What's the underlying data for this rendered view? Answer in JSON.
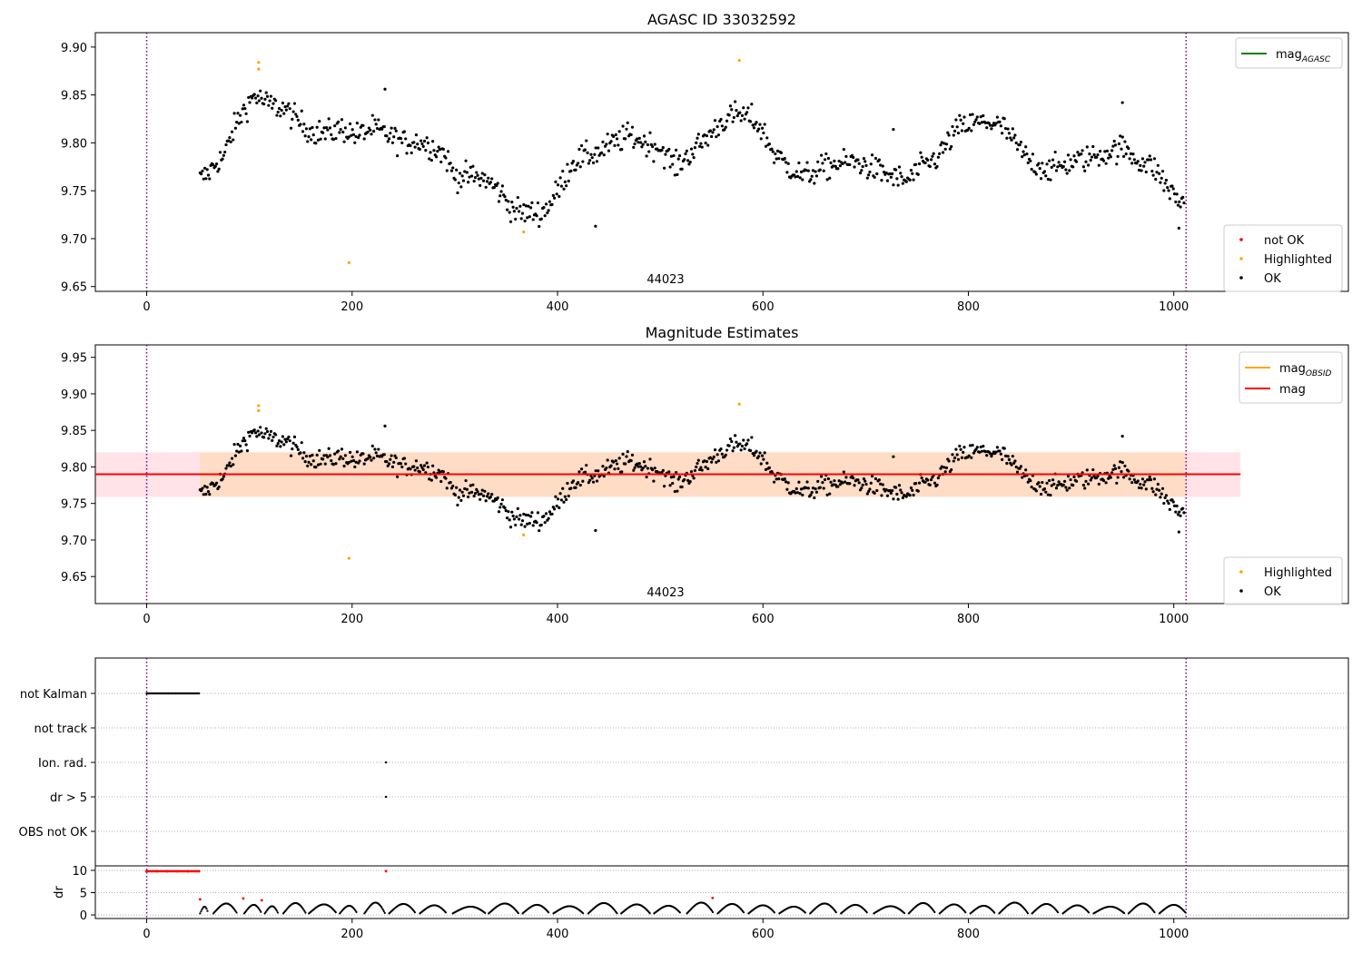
{
  "chart_data": [
    {
      "type": "scatter",
      "title": "AGASC ID 33032592",
      "xlim": [
        -50,
        1170
      ],
      "ylim": [
        9.645,
        9.915
      ],
      "xticks": [
        0,
        200,
        400,
        600,
        800,
        1000
      ],
      "yticks": [
        "9.65",
        "9.70",
        "9.75",
        "9.80",
        "9.85",
        "9.90"
      ],
      "obsid_label": "44023",
      "obsid_label_x": 505,
      "vlines": [
        0,
        1012
      ],
      "legend_lines": [
        {
          "label": "mag",
          "sub": "AGASC",
          "color": "#008000"
        }
      ],
      "legend_points": [
        {
          "label": "not OK",
          "color": "#ff0000"
        },
        {
          "label": "Highlighted",
          "color": "#ffa500"
        },
        {
          "label": "OK",
          "color": "#000000"
        }
      ],
      "highlighted": [
        [
          109,
          9.884
        ],
        [
          109,
          9.877
        ],
        [
          197,
          9.675
        ],
        [
          367,
          9.707
        ],
        [
          577,
          9.886
        ]
      ],
      "ok_trend": [
        [
          52,
          9.762
        ],
        [
          60,
          9.768
        ],
        [
          68,
          9.78
        ],
        [
          75,
          9.785
        ],
        [
          85,
          9.815
        ],
        [
          95,
          9.835
        ],
        [
          105,
          9.85
        ],
        [
          115,
          9.842
        ],
        [
          125,
          9.838
        ],
        [
          135,
          9.835
        ],
        [
          145,
          9.825
        ],
        [
          160,
          9.812
        ],
        [
          175,
          9.81
        ],
        [
          190,
          9.815
        ],
        [
          205,
          9.808
        ],
        [
          220,
          9.815
        ],
        [
          235,
          9.808
        ],
        [
          250,
          9.8
        ],
        [
          265,
          9.802
        ],
        [
          280,
          9.795
        ],
        [
          290,
          9.788
        ],
        [
          300,
          9.765
        ],
        [
          315,
          9.765
        ],
        [
          330,
          9.762
        ],
        [
          345,
          9.748
        ],
        [
          355,
          9.732
        ],
        [
          365,
          9.727
        ],
        [
          375,
          9.727
        ],
        [
          385,
          9.727
        ],
        [
          395,
          9.74
        ],
        [
          405,
          9.76
        ],
        [
          415,
          9.78
        ],
        [
          425,
          9.785
        ],
        [
          440,
          9.79
        ],
        [
          455,
          9.8
        ],
        [
          470,
          9.808
        ],
        [
          485,
          9.8
        ],
        [
          500,
          9.795
        ],
        [
          515,
          9.775
        ],
        [
          530,
          9.79
        ],
        [
          545,
          9.805
        ],
        [
          560,
          9.822
        ],
        [
          575,
          9.83
        ],
        [
          590,
          9.825
        ],
        [
          600,
          9.812
        ],
        [
          610,
          9.79
        ],
        [
          625,
          9.775
        ],
        [
          640,
          9.765
        ],
        [
          655,
          9.772
        ],
        [
          670,
          9.778
        ],
        [
          690,
          9.78
        ],
        [
          710,
          9.772
        ],
        [
          725,
          9.765
        ],
        [
          740,
          9.76
        ],
        [
          755,
          9.775
        ],
        [
          770,
          9.785
        ],
        [
          780,
          9.8
        ],
        [
          790,
          9.815
        ],
        [
          805,
          9.82
        ],
        [
          820,
          9.822
        ],
        [
          835,
          9.815
        ],
        [
          845,
          9.8
        ],
        [
          860,
          9.78
        ],
        [
          880,
          9.772
        ],
        [
          900,
          9.78
        ],
        [
          920,
          9.785
        ],
        [
          935,
          9.79
        ],
        [
          950,
          9.795
        ],
        [
          965,
          9.782
        ],
        [
          980,
          9.775
        ],
        [
          990,
          9.76
        ],
        [
          1000,
          9.745
        ],
        [
          1010,
          9.735
        ]
      ],
      "ok_noise": 0.012,
      "ok_step": 1.15,
      "ok_outliers": [
        [
          437,
          9.713
        ],
        [
          1005,
          9.711
        ],
        [
          232,
          9.856
        ],
        [
          950,
          9.842
        ],
        [
          727,
          9.814
        ]
      ]
    },
    {
      "type": "scatter",
      "title": "Magnitude Estimates",
      "xlim": [
        -50,
        1170
      ],
      "ylim": [
        9.613,
        9.967
      ],
      "xticks": [
        0,
        200,
        400,
        600,
        800,
        1000
      ],
      "yticks": [
        "9.65",
        "9.70",
        "9.75",
        "9.80",
        "9.85",
        "9.90",
        "9.95"
      ],
      "obsid_label": "44023",
      "obsid_label_x": 505,
      "vlines": [
        0,
        1012
      ],
      "mag_line": {
        "y": 9.79,
        "color": "#ff0000",
        "x0": -50,
        "x1": 1065
      },
      "mag_band": {
        "y0": 9.759,
        "y1": 9.82,
        "color": "#ffc0cb"
      },
      "obsid_band": {
        "y0": 9.759,
        "y1": 9.82,
        "x0": 52,
        "x1": 1012,
        "color": "#ffdab9"
      },
      "legend_lines": [
        {
          "label": "mag",
          "sub": "OBSID",
          "color": "#ffa500"
        },
        {
          "label": "mag",
          "sub": "",
          "color": "#ff0000"
        }
      ],
      "legend_points": [
        {
          "label": "Highlighted",
          "color": "#ffa500"
        },
        {
          "label": "OK",
          "color": "#000000"
        }
      ]
    },
    {
      "type": "scatter",
      "xlim": [
        -50,
        1170
      ],
      "xticks": [
        0,
        200,
        400,
        600,
        800,
        1000
      ],
      "vlines": [
        0,
        1012
      ],
      "flag_rows": [
        "not Kalman",
        "not track",
        "Ion. rad.",
        "dr > 5",
        "OBS not OK"
      ],
      "flag_points": [
        {
          "row": "not Kalman",
          "x_from": 0,
          "x_to": 51
        },
        {
          "row": "Ion. rad.",
          "x_from": 233,
          "x_to": 233
        },
        {
          "row": "dr > 5",
          "x_from": 233,
          "x_to": 233
        }
      ],
      "dr_ylabel": "dr",
      "dr_yticks": [
        "0",
        "5",
        "10"
      ],
      "dr_ylim": [
        -0.8,
        10.8
      ],
      "dr_red_points": [
        [
          0,
          9.8
        ],
        [
          10,
          9.8
        ],
        [
          20,
          9.8
        ],
        [
          30,
          9.8
        ],
        [
          40,
          9.8
        ],
        [
          51,
          9.8
        ],
        [
          233,
          9.8
        ],
        [
          52,
          3.5
        ],
        [
          94,
          3.7
        ],
        [
          112,
          3.3
        ],
        [
          551,
          3.8
        ]
      ],
      "dr_arcs": [
        [
          52,
          60
        ],
        [
          65,
          88
        ],
        [
          95,
          112
        ],
        [
          115,
          128
        ],
        [
          133,
          155
        ],
        [
          158,
          185
        ],
        [
          188,
          205
        ],
        [
          212,
          232
        ],
        [
          236,
          262
        ],
        [
          266,
          292
        ],
        [
          298,
          330
        ],
        [
          333,
          362
        ],
        [
          366,
          392
        ],
        [
          396,
          425
        ],
        [
          430,
          458
        ],
        [
          462,
          490
        ],
        [
          494,
          520
        ],
        [
          526,
          552
        ],
        [
          556,
          582
        ],
        [
          586,
          612
        ],
        [
          616,
          642
        ],
        [
          646,
          672
        ],
        [
          676,
          702
        ],
        [
          708,
          738
        ],
        [
          742,
          768
        ],
        [
          772,
          798
        ],
        [
          802,
          826
        ],
        [
          830,
          858
        ],
        [
          862,
          888
        ],
        [
          892,
          918
        ],
        [
          922,
          952
        ],
        [
          956,
          982
        ],
        [
          986,
          1012
        ]
      ]
    }
  ]
}
